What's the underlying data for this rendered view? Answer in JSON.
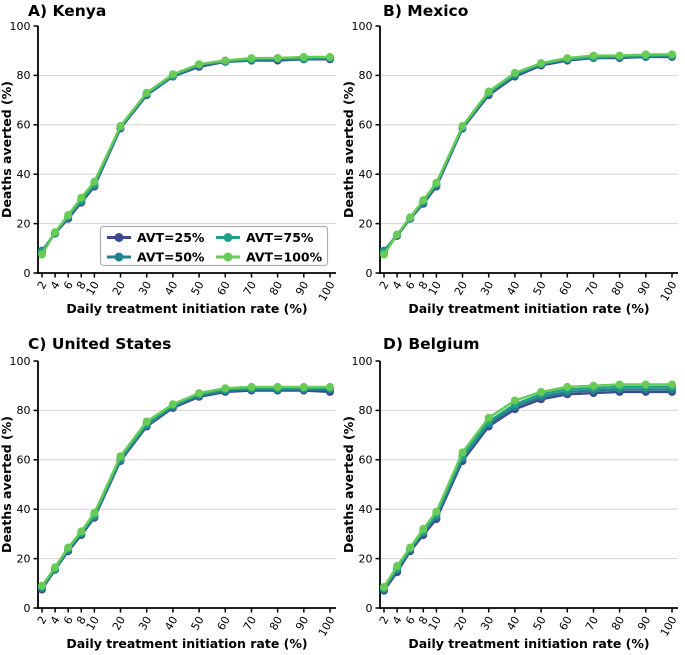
{
  "figure": {
    "ylim": [
      0,
      100
    ],
    "yticks": [
      0,
      20,
      40,
      60,
      80,
      100
    ],
    "ytick_labels": [
      "0",
      "20",
      "40",
      "60",
      "80",
      "100"
    ],
    "categories": [
      2,
      4,
      6,
      8,
      10,
      20,
      30,
      40,
      50,
      60,
      70,
      80,
      90,
      100
    ],
    "xtick_labels": [
      "2",
      "4",
      "6",
      "8",
      "10",
      "20",
      "30",
      "40",
      "50",
      "60",
      "70",
      "80",
      "90",
      "100"
    ],
    "grid": true,
    "grid_color": "#d9d9d9",
    "legend_border": "#b0b0b0",
    "legend_position": "inside lower center of panel A",
    "series_colors": {
      "AVT=25%": "#3f478d",
      "AVT=50%": "#23808e",
      "AVT=75%": "#1fa287",
      "AVT=100%": "#67cb55"
    }
  },
  "chart_data": [
    {
      "type": "line",
      "title": "A) Kenya",
      "xlabel": "Daily treatment initiation rate (%)",
      "ylabel": "Deaths averted (%)",
      "x": [
        2,
        4,
        6,
        8,
        10,
        20,
        30,
        40,
        50,
        60,
        70,
        80,
        90,
        100
      ],
      "show_legend": true,
      "series": [
        {
          "name": "AVT=25%",
          "values": [
            9,
            16,
            22,
            28.5,
            35,
            58.5,
            72,
            79.5,
            83.5,
            85.5,
            86,
            86,
            86.5,
            86.5
          ]
        },
        {
          "name": "AVT=50%",
          "values": [
            9,
            16,
            22.5,
            29,
            35.5,
            59,
            72.5,
            79.5,
            84,
            85.5,
            86,
            86.5,
            86.5,
            87
          ]
        },
        {
          "name": "AVT=75%",
          "values": [
            8.5,
            16.5,
            23,
            29.5,
            36,
            59,
            72.5,
            80,
            84.5,
            86,
            86.5,
            87,
            87,
            87
          ]
        },
        {
          "name": "AVT=100%",
          "values": [
            7.5,
            16.5,
            23.5,
            30.5,
            37,
            59.5,
            73,
            80.5,
            84.5,
            86,
            87,
            87,
            87.5,
            87.5
          ]
        }
      ]
    },
    {
      "type": "line",
      "title": "B) Mexico",
      "xlabel": "Daily treatment initiation rate (%)",
      "ylabel": "Deaths averted (%)",
      "x": [
        2,
        4,
        6,
        8,
        10,
        20,
        30,
        40,
        50,
        60,
        70,
        80,
        90,
        100
      ],
      "show_legend": false,
      "series": [
        {
          "name": "AVT=25%",
          "values": [
            9,
            15,
            22,
            28,
            35,
            58.5,
            72,
            79.5,
            84,
            86,
            87,
            87,
            87.5,
            87.5
          ]
        },
        {
          "name": "AVT=50%",
          "values": [
            9,
            15.5,
            22,
            28.5,
            35.5,
            59,
            72.5,
            80,
            84.5,
            86.5,
            87,
            87.5,
            87.5,
            88
          ]
        },
        {
          "name": "AVT=75%",
          "values": [
            8.5,
            15.5,
            22.5,
            29,
            36,
            59,
            73,
            80.5,
            84.5,
            86.5,
            87.5,
            87.5,
            88,
            88
          ]
        },
        {
          "name": "AVT=100%",
          "values": [
            7.5,
            15.5,
            22.5,
            29.5,
            36.5,
            59.5,
            73.5,
            81,
            85,
            87,
            88,
            88,
            88.5,
            88.5
          ]
        }
      ]
    },
    {
      "type": "line",
      "title": "C) United States",
      "xlabel": "Daily treatment initiation rate (%)",
      "ylabel": "Deaths averted (%)",
      "x": [
        2,
        4,
        6,
        8,
        10,
        20,
        30,
        40,
        50,
        60,
        70,
        80,
        90,
        100
      ],
      "show_legend": false,
      "series": [
        {
          "name": "AVT=25%",
          "values": [
            7.5,
            15.5,
            23,
            29.5,
            36.5,
            59.5,
            73.5,
            81,
            85.5,
            87.5,
            88,
            88,
            88,
            87.5
          ]
        },
        {
          "name": "AVT=50%",
          "values": [
            8,
            15.5,
            23.5,
            30,
            37,
            60,
            74,
            81.5,
            86,
            88,
            88.5,
            88.5,
            88.5,
            88.5
          ]
        },
        {
          "name": "AVT=75%",
          "values": [
            8.5,
            16,
            24,
            30.5,
            37.5,
            60.5,
            74.5,
            82,
            86.5,
            88.5,
            89,
            89,
            89,
            89
          ]
        },
        {
          "name": "AVT=100%",
          "values": [
            9,
            16.5,
            24.5,
            31,
            38.5,
            61.5,
            75.5,
            82.5,
            87,
            89,
            89.5,
            89.5,
            89.5,
            89.5
          ]
        }
      ]
    },
    {
      "type": "line",
      "title": "D) Belgium",
      "xlabel": "Daily treatment initiation rate (%)",
      "ylabel": "Deaths averted (%)",
      "x": [
        2,
        4,
        6,
        8,
        10,
        20,
        30,
        40,
        50,
        60,
        70,
        80,
        90,
        100
      ],
      "show_legend": false,
      "series": [
        {
          "name": "AVT=25%",
          "values": [
            7,
            14.5,
            23,
            29.5,
            36,
            59.5,
            73.5,
            80.5,
            84.5,
            86.5,
            87,
            87.5,
            87.5,
            87.5
          ]
        },
        {
          "name": "AVT=50%",
          "values": [
            7.5,
            15.5,
            23.5,
            30.5,
            37,
            60.5,
            74.5,
            81.5,
            85.5,
            87.5,
            88,
            88.5,
            88.5,
            88.5
          ]
        },
        {
          "name": "AVT=75%",
          "values": [
            8,
            16,
            24,
            31,
            38,
            61.5,
            75.5,
            82.5,
            86.5,
            88.5,
            89,
            89.5,
            89.5,
            89.5
          ]
        },
        {
          "name": "AVT=100%",
          "values": [
            8.5,
            17,
            24.5,
            32,
            39,
            63,
            77,
            84,
            87.5,
            89.5,
            90,
            90.5,
            90.5,
            90.5
          ]
        }
      ]
    }
  ]
}
